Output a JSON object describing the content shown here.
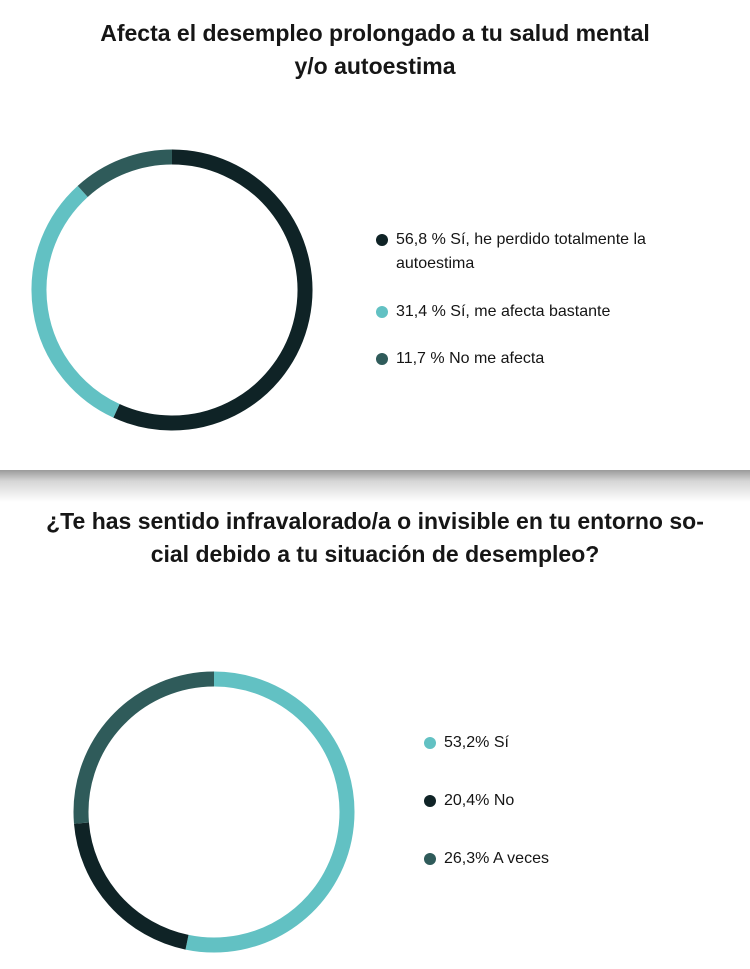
{
  "chart_data": [
    {
      "type": "donut",
      "title": [
        "Afecta el desempleo prolongado a tu salud mental",
        "y/o autoestima"
      ],
      "categories": [
        "Sí, he perdido totalmente la autoestima",
        "Sí, me afecta bastante",
        "No me afecta"
      ],
      "values": [
        56.8,
        31.4,
        11.7
      ],
      "value_labels": [
        "56,8 %",
        "31,4 %",
        "11,7 %"
      ],
      "colors": [
        "#0f2326",
        "#62c1c3",
        "#2f5b5a"
      ]
    },
    {
      "type": "donut",
      "title": [
        "¿Te has sentido infravalorado/a o invisible en tu entorno so-",
        "cial debido a tu situación de desempleo?"
      ],
      "categories": [
        "Sí",
        "No",
        "A veces"
      ],
      "values": [
        53.2,
        20.4,
        26.3
      ],
      "value_labels": [
        "53,2%",
        "20,4%",
        "26,3%"
      ],
      "colors": [
        "#62c1c3",
        "#0f2326",
        "#2f5b5a"
      ]
    }
  ]
}
